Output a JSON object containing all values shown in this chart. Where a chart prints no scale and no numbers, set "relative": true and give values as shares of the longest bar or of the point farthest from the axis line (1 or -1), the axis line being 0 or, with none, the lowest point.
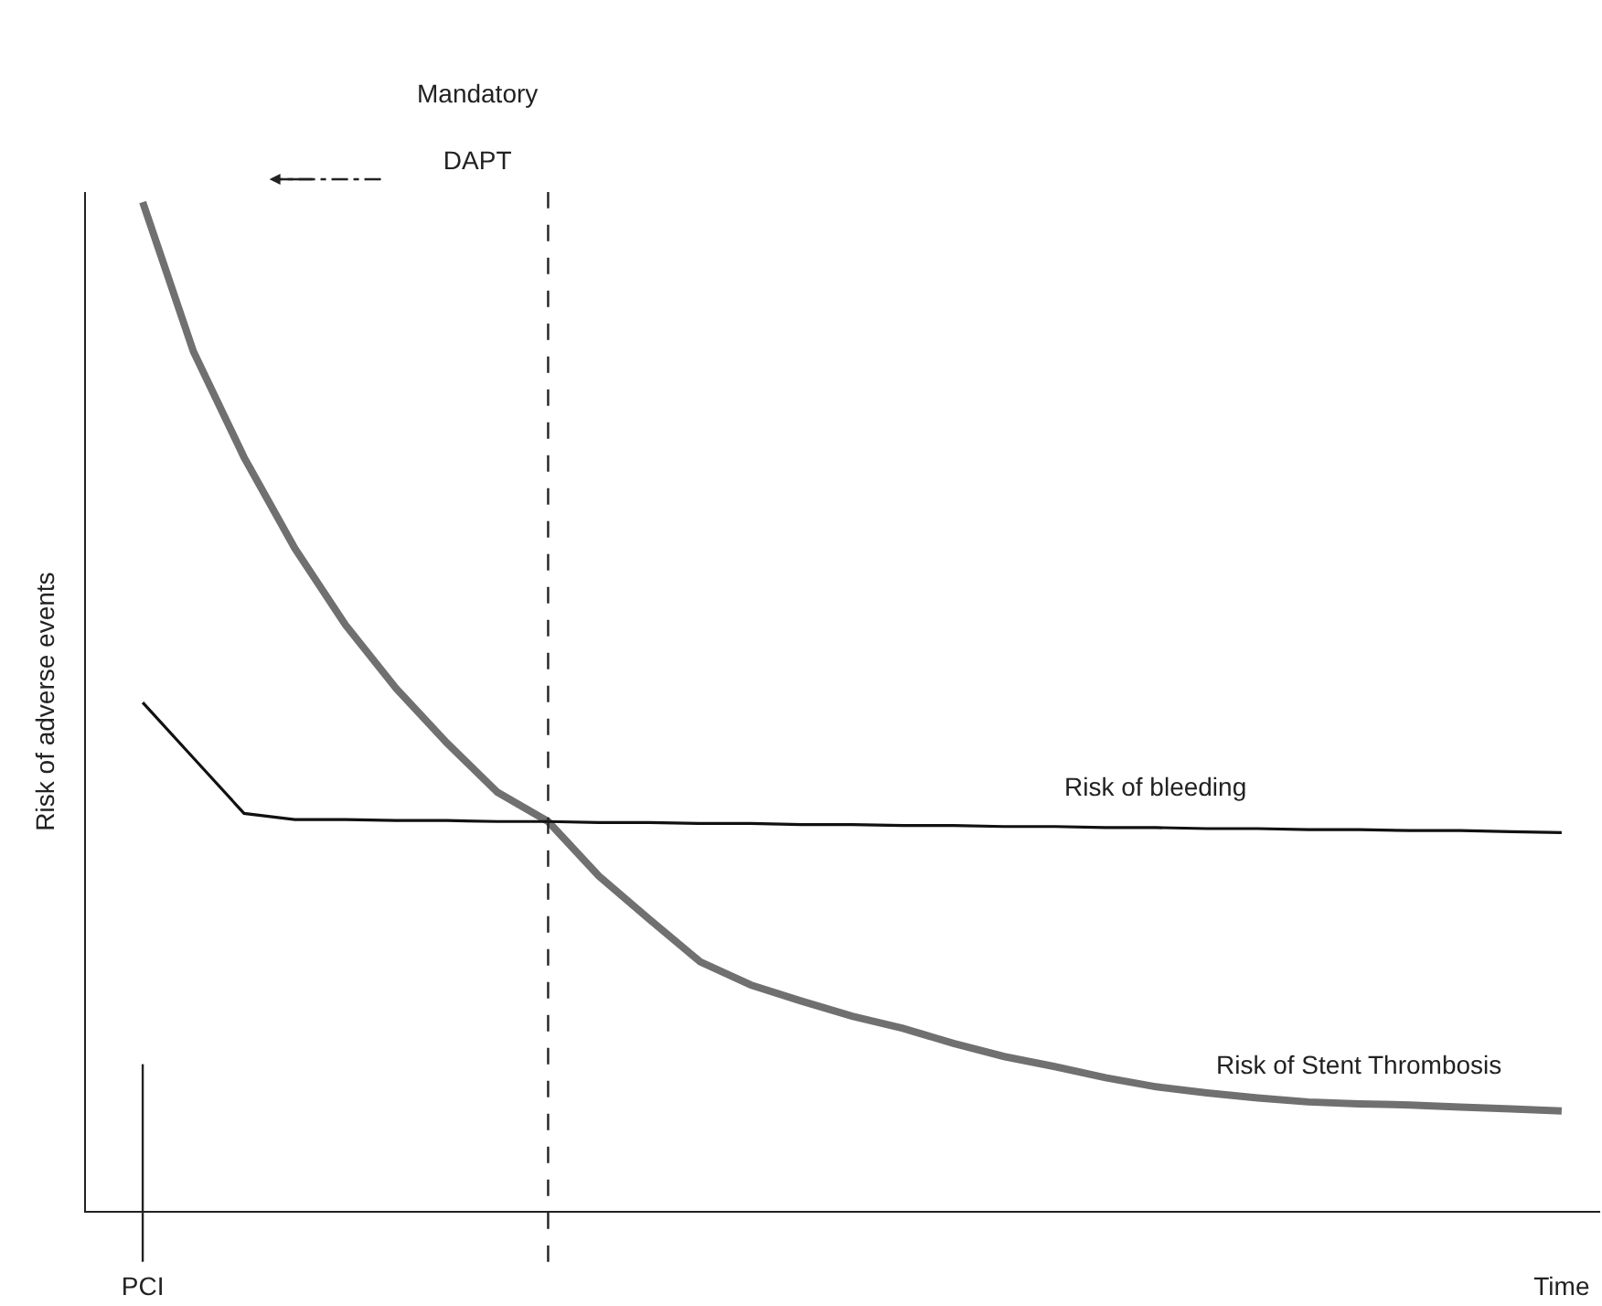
{
  "chart_data": {
    "type": "line",
    "relative": true,
    "ylabel": "Risk of adverse events",
    "categories": [
      "PCI",
      null,
      null,
      null,
      null,
      null,
      null,
      null,
      null,
      null,
      null,
      null,
      null,
      null,
      null,
      null,
      null,
      null,
      null,
      null,
      null,
      null,
      null,
      null,
      null,
      null,
      null,
      null,
      "Time"
    ],
    "series": [
      {
        "color": "#707070",
        "values": [
          1.0,
          0.852,
          0.747,
          0.657,
          0.581,
          0.518,
          0.464,
          0.415,
          0.386,
          0.332,
          0.289,
          0.247,
          0.224,
          0.208,
          0.193,
          0.181,
          0.166,
          0.153,
          0.143,
          0.132,
          0.123,
          0.117,
          0.112,
          0.108,
          0.106,
          0.105,
          0.103,
          0.101,
          0.099
        ]
      },
      {
        "color": "#111111",
        "values": [
          0.504,
          0.449,
          0.394,
          0.388,
          0.388,
          0.387,
          0.387,
          0.386,
          0.386,
          0.385,
          0.385,
          0.384,
          0.384,
          0.383,
          0.383,
          0.382,
          0.382,
          0.381,
          0.381,
          0.38,
          0.38,
          0.379,
          0.379,
          0.378,
          0.378,
          0.377,
          0.377,
          0.376,
          0.375
        ]
      }
    ],
    "ref_lines": [
      {
        "axis": "x",
        "value": "PCI",
        "line_style": "solid",
        "color": "#222222"
      }
    ],
    "annotations": [
      "Risk of Stent Thrombosis",
      "Risk of bleeding",
      "Mandatory\nDAPT"
    ],
    "marker": "none",
    "line_style": "solid"
  }
}
